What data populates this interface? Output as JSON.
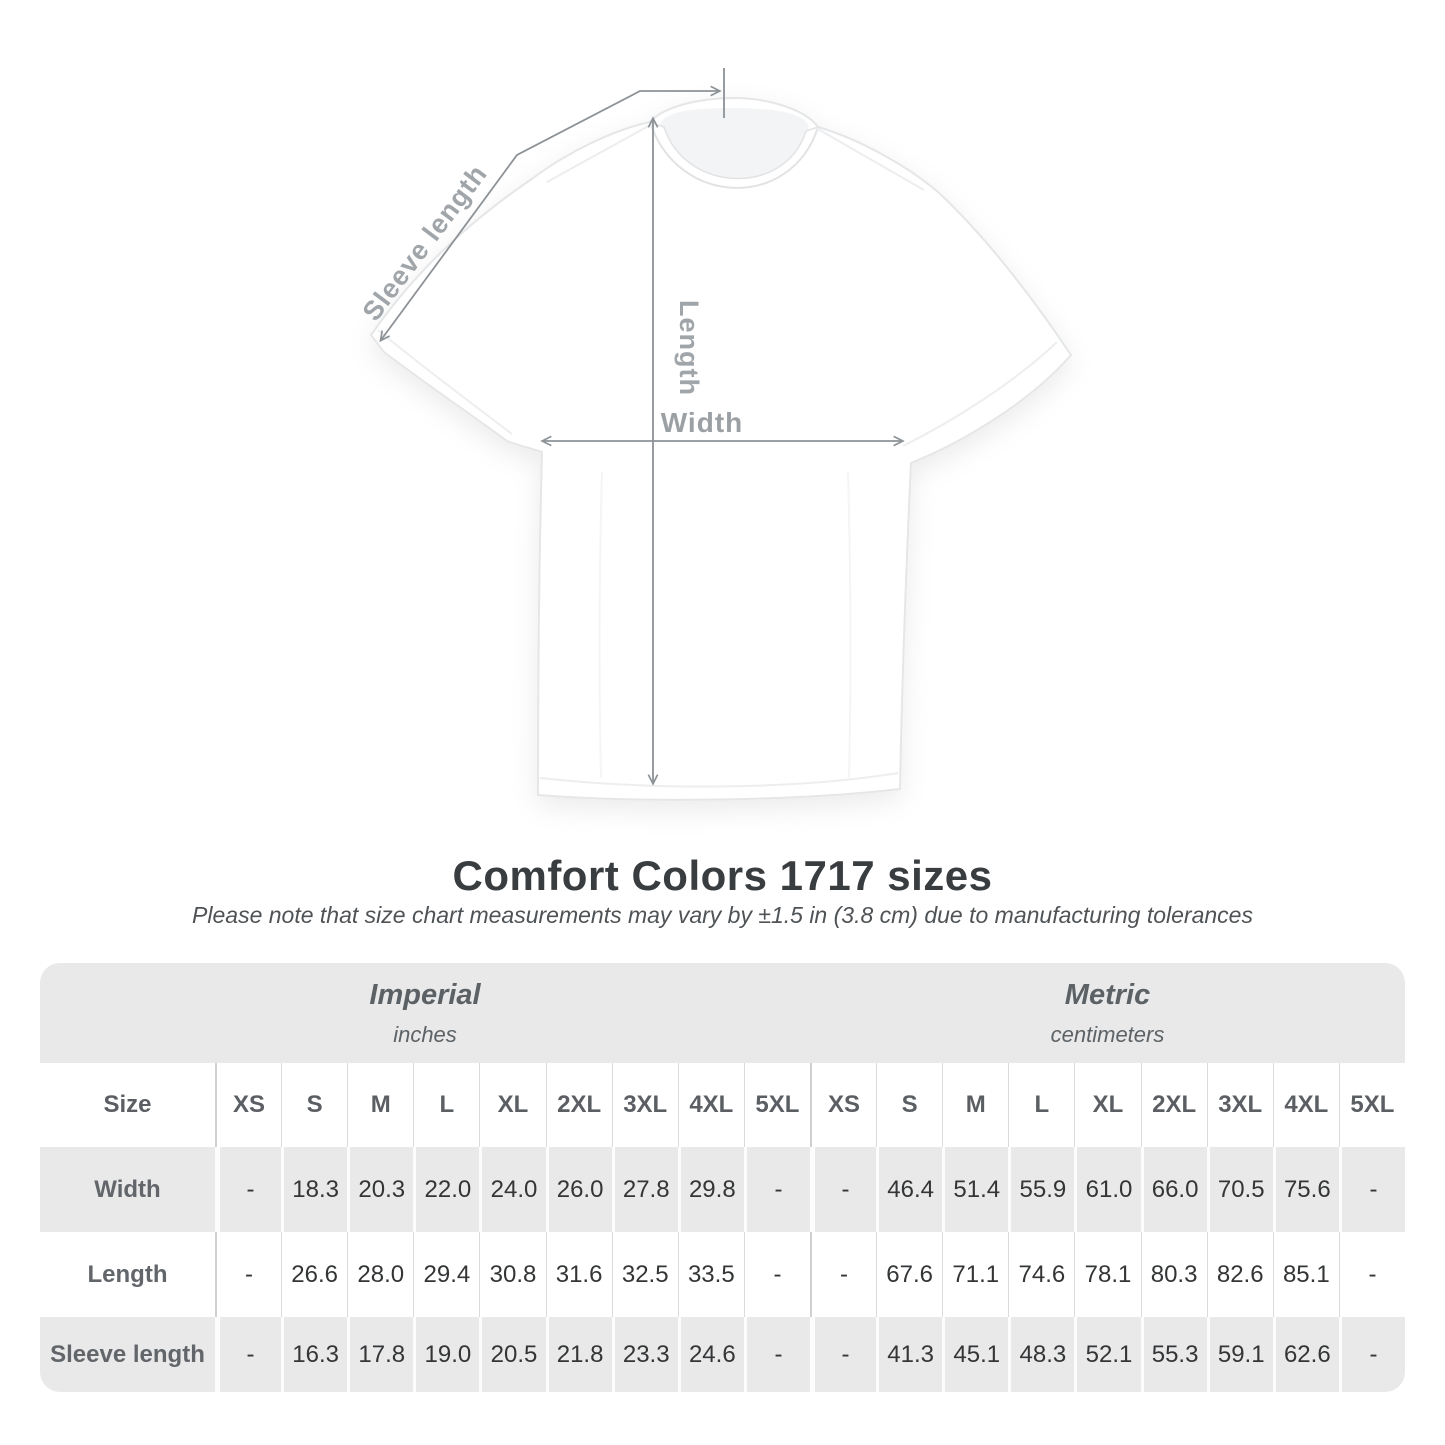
{
  "title": "Comfort Colors 1717 sizes",
  "subtitle": "Please note that size chart measurements may vary by ±1.5 in (3.8 cm) due to manufacturing tolerances",
  "diagram": {
    "sleeve_label": "Sleeve length",
    "length_label": "Length",
    "width_label": "Width",
    "line_color": "#8d9297",
    "label_color": "#9fa4a9"
  },
  "chart_data": {
    "type": "table",
    "title": "Comfort Colors 1717 sizes",
    "corner_label": "Size",
    "unit_groups": [
      {
        "label": "Imperial",
        "unit": "inches"
      },
      {
        "label": "Metric",
        "unit": "centimeters"
      }
    ],
    "sizes": [
      "XS",
      "S",
      "M",
      "L",
      "XL",
      "2XL",
      "3XL",
      "4XL",
      "5XL"
    ],
    "rows": [
      {
        "label": "Width",
        "imperial": [
          "-",
          "18.3",
          "20.3",
          "22.0",
          "24.0",
          "26.0",
          "27.8",
          "29.8",
          "-"
        ],
        "metric": [
          "-",
          "46.4",
          "51.4",
          "55.9",
          "61.0",
          "66.0",
          "70.5",
          "75.6",
          "-"
        ]
      },
      {
        "label": "Length",
        "imperial": [
          "-",
          "26.6",
          "28.0",
          "29.4",
          "30.8",
          "31.6",
          "32.5",
          "33.5",
          "-"
        ],
        "metric": [
          "-",
          "67.6",
          "71.1",
          "74.6",
          "78.1",
          "80.3",
          "82.6",
          "85.1",
          "-"
        ]
      },
      {
        "label": "Sleeve length",
        "imperial": [
          "-",
          "16.3",
          "17.8",
          "19.0",
          "20.5",
          "21.8",
          "23.3",
          "24.6",
          "-"
        ],
        "metric": [
          "-",
          "41.3",
          "45.1",
          "48.3",
          "52.1",
          "55.3",
          "59.1",
          "62.6",
          "-"
        ]
      }
    ],
    "layout": {
      "stripe_color": "#e9e9e9",
      "striped_rows": [
        "Width",
        "Sleeve length"
      ],
      "legend_position": "none",
      "grid": "vertical-separators"
    }
  }
}
